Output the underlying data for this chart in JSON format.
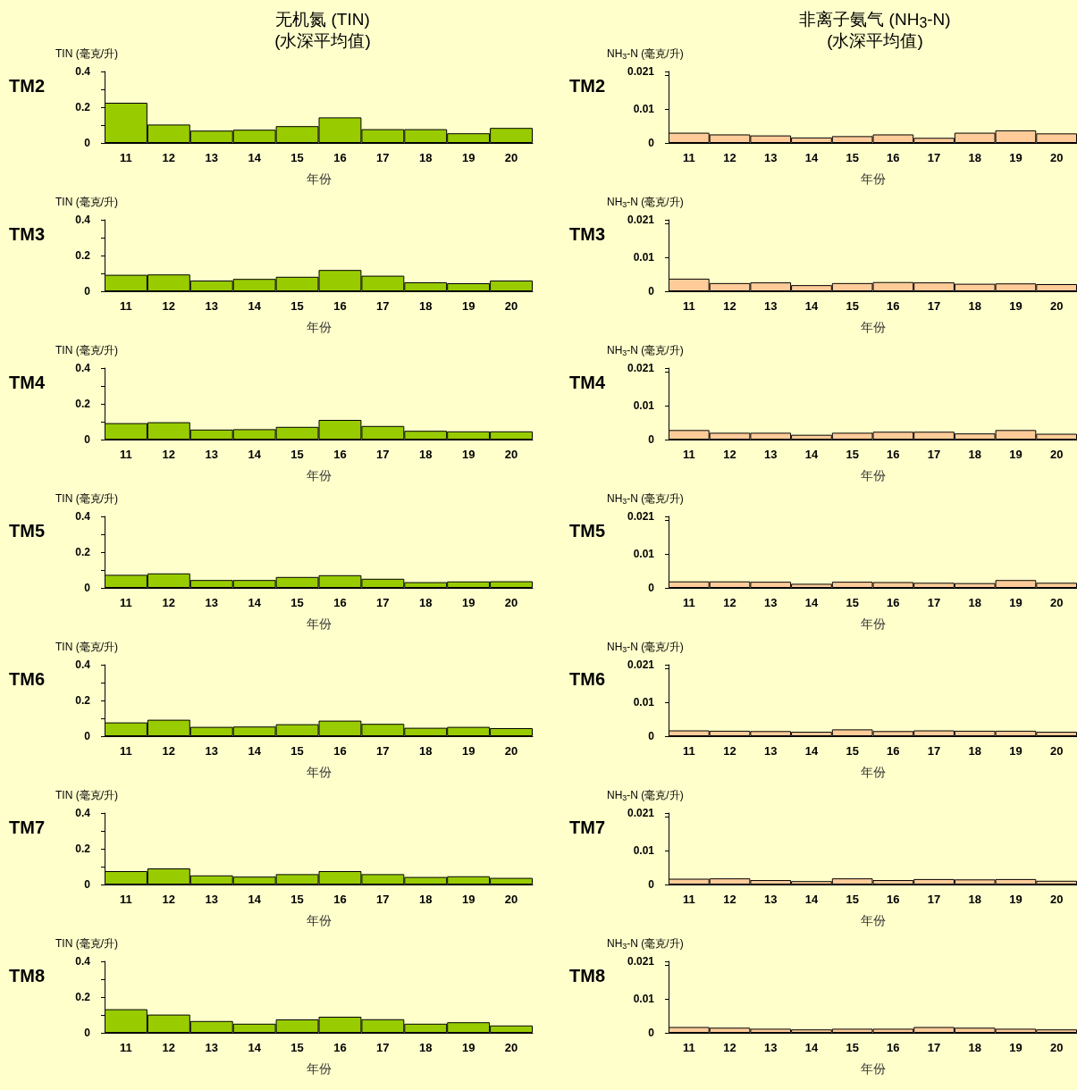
{
  "chart_data": [
    {
      "type": "bar",
      "title": "无机氮 (TIN)\n(水深平均值)",
      "annotations": [
        "TM2"
      ],
      "ylabel": "TIN (毫克/升)",
      "xlabel": "年份",
      "categories": [
        "11",
        "12",
        "13",
        "14",
        "15",
        "16",
        "17",
        "18",
        "19",
        "20"
      ],
      "color": "#99cc00",
      "ylim": [
        0,
        0.4
      ],
      "yticks": [
        0,
        {
          "value": 0.1,
          "label": null
        },
        0.2,
        {
          "value": 0.3,
          "label": null
        },
        0.4
      ],
      "values": [
        0.225,
        0.103,
        0.069,
        0.074,
        0.094,
        0.143,
        0.077,
        0.077,
        0.054,
        0.084
      ]
    },
    {
      "type": "bar",
      "title": "非离子氨气 (NH$_{3}$-N)\n(水深平均值)",
      "annotations": [
        "TM2"
      ],
      "ylabel": "NH$_{3}$-N (毫克/升)",
      "xlabel": "年份",
      "categories": [
        "11",
        "12",
        "13",
        "14",
        "15",
        "16",
        "17",
        "18",
        "19",
        "20"
      ],
      "color": "#ffcc99",
      "ylim": [
        0,
        0.021
      ],
      "yticks": [
        0,
        0.01,
        {
          "value": 0.02,
          "label": null
        },
        0.021
      ],
      "values": [
        0.003,
        0.0025,
        0.0022,
        0.0016,
        0.002,
        0.0025,
        0.0015,
        0.003,
        0.0037,
        0.0028
      ]
    },
    {
      "type": "bar",
      "annotations": [
        "TM3"
      ],
      "ylabel": "TIN (毫克/升)",
      "xlabel": "年份",
      "categories": [
        "11",
        "12",
        "13",
        "14",
        "15",
        "16",
        "17",
        "18",
        "19",
        "20"
      ],
      "color": "#99cc00",
      "ylim": [
        0,
        0.4
      ],
      "yticks": [
        0,
        {
          "value": 0.1,
          "label": null
        },
        0.2,
        {
          "value": 0.3,
          "label": null
        },
        0.4
      ],
      "values": [
        0.092,
        0.094,
        0.06,
        0.069,
        0.081,
        0.119,
        0.087,
        0.05,
        0.045,
        0.06
      ]
    },
    {
      "type": "bar",
      "annotations": [
        "TM3"
      ],
      "ylabel": "NH$_{3}$-N (毫克/升)",
      "xlabel": "年份",
      "categories": [
        "11",
        "12",
        "13",
        "14",
        "15",
        "16",
        "17",
        "18",
        "19",
        "20"
      ],
      "color": "#ffcc99",
      "ylim": [
        0,
        0.021
      ],
      "yticks": [
        0,
        0.01,
        {
          "value": 0.02,
          "label": null
        },
        0.021
      ],
      "values": [
        0.0037,
        0.0024,
        0.0026,
        0.0018,
        0.0024,
        0.0027,
        0.0026,
        0.0022,
        0.0023,
        0.0021
      ]
    },
    {
      "type": "bar",
      "annotations": [
        "TM4"
      ],
      "ylabel": "TIN (毫克/升)",
      "xlabel": "年份",
      "categories": [
        "11",
        "12",
        "13",
        "14",
        "15",
        "16",
        "17",
        "18",
        "19",
        "20"
      ],
      "color": "#99cc00",
      "ylim": [
        0,
        0.4
      ],
      "yticks": [
        0,
        {
          "value": 0.1,
          "label": null
        },
        0.2,
        {
          "value": 0.3,
          "label": null
        },
        0.4
      ],
      "values": [
        0.092,
        0.097,
        0.056,
        0.058,
        0.071,
        0.11,
        0.076,
        0.049,
        0.046,
        0.046
      ]
    },
    {
      "type": "bar",
      "annotations": [
        "TM4"
      ],
      "ylabel": "NH$_{3}$-N (毫克/升)",
      "xlabel": "年份",
      "categories": [
        "11",
        "12",
        "13",
        "14",
        "15",
        "16",
        "17",
        "18",
        "19",
        "20"
      ],
      "color": "#ffcc99",
      "ylim": [
        0,
        0.021
      ],
      "yticks": [
        0,
        0.01,
        {
          "value": 0.02,
          "label": null
        },
        0.021
      ],
      "values": [
        0.0028,
        0.002,
        0.002,
        0.0014,
        0.002,
        0.0023,
        0.0023,
        0.0018,
        0.0028,
        0.0017
      ]
    },
    {
      "type": "bar",
      "annotations": [
        "TM5"
      ],
      "ylabel": "TIN (毫克/升)",
      "xlabel": "年份",
      "categories": [
        "11",
        "12",
        "13",
        "14",
        "15",
        "16",
        "17",
        "18",
        "19",
        "20"
      ],
      "color": "#99cc00",
      "ylim": [
        0,
        0.4
      ],
      "yticks": [
        0,
        {
          "value": 0.1,
          "label": null
        },
        0.2,
        {
          "value": 0.3,
          "label": null
        },
        0.4
      ],
      "values": [
        0.073,
        0.081,
        0.044,
        0.044,
        0.061,
        0.071,
        0.051,
        0.032,
        0.036,
        0.037
      ]
    },
    {
      "type": "bar",
      "annotations": [
        "TM5"
      ],
      "ylabel": "NH$_{3}$-N (毫克/升)",
      "xlabel": "年份",
      "categories": [
        "11",
        "12",
        "13",
        "14",
        "15",
        "16",
        "17",
        "18",
        "19",
        "20"
      ],
      "color": "#ffcc99",
      "ylim": [
        0,
        0.021
      ],
      "yticks": [
        0,
        0.01,
        {
          "value": 0.02,
          "label": null
        },
        0.021
      ],
      "values": [
        0.0019,
        0.0019,
        0.0018,
        0.0012,
        0.0018,
        0.0017,
        0.0015,
        0.0014,
        0.0023,
        0.0015
      ]
    },
    {
      "type": "bar",
      "annotations": [
        "TM6"
      ],
      "ylabel": "TIN (毫克/升)",
      "xlabel": "年份",
      "categories": [
        "11",
        "12",
        "13",
        "14",
        "15",
        "16",
        "17",
        "18",
        "19",
        "20"
      ],
      "color": "#99cc00",
      "ylim": [
        0,
        0.4
      ],
      "yticks": [
        0,
        {
          "value": 0.1,
          "label": null
        },
        0.2,
        {
          "value": 0.3,
          "label": null
        },
        0.4
      ],
      "values": [
        0.077,
        0.092,
        0.052,
        0.054,
        0.067,
        0.087,
        0.069,
        0.047,
        0.052,
        0.045
      ]
    },
    {
      "type": "bar",
      "annotations": [
        "TM6"
      ],
      "ylabel": "NH$_{3}$-N (毫克/升)",
      "xlabel": "年份",
      "categories": [
        "11",
        "12",
        "13",
        "14",
        "15",
        "16",
        "17",
        "18",
        "19",
        "20"
      ],
      "color": "#ffcc99",
      "ylim": [
        0,
        0.021
      ],
      "yticks": [
        0,
        0.01,
        {
          "value": 0.02,
          "label": null
        },
        0.021
      ],
      "values": [
        0.0017,
        0.0016,
        0.0015,
        0.0013,
        0.002,
        0.0015,
        0.0017,
        0.0016,
        0.0016,
        0.0013
      ]
    },
    {
      "type": "bar",
      "annotations": [
        "TM7"
      ],
      "ylabel": "TIN (毫克/升)",
      "xlabel": "年份",
      "categories": [
        "11",
        "12",
        "13",
        "14",
        "15",
        "16",
        "17",
        "18",
        "19",
        "20"
      ],
      "color": "#99cc00",
      "ylim": [
        0,
        0.4
      ],
      "yticks": [
        0,
        {
          "value": 0.1,
          "label": null
        },
        0.2,
        {
          "value": 0.3,
          "label": null
        },
        0.4
      ],
      "values": [
        0.075,
        0.09,
        0.051,
        0.044,
        0.058,
        0.075,
        0.058,
        0.042,
        0.046,
        0.037
      ]
    },
    {
      "type": "bar",
      "annotations": [
        "TM7"
      ],
      "ylabel": "NH$_{3}$-N (毫克/升)",
      "xlabel": "年份",
      "categories": [
        "11",
        "12",
        "13",
        "14",
        "15",
        "16",
        "17",
        "18",
        "19",
        "20"
      ],
      "color": "#ffcc99",
      "ylim": [
        0,
        0.021
      ],
      "yticks": [
        0,
        0.01,
        {
          "value": 0.02,
          "label": null
        },
        0.021
      ],
      "values": [
        0.0017,
        0.0018,
        0.0013,
        0.001,
        0.0018,
        0.0013,
        0.0016,
        0.0015,
        0.0016,
        0.0011
      ]
    },
    {
      "type": "bar",
      "annotations": [
        "TM8"
      ],
      "ylabel": "TIN (毫克/升)",
      "xlabel": "年份",
      "categories": [
        "11",
        "12",
        "13",
        "14",
        "15",
        "16",
        "17",
        "18",
        "19",
        "20"
      ],
      "color": "#99cc00",
      "ylim": [
        0,
        0.4
      ],
      "yticks": [
        0,
        {
          "value": 0.1,
          "label": null
        },
        0.2,
        {
          "value": 0.3,
          "label": null
        },
        0.4
      ],
      "values": [
        0.132,
        0.102,
        0.066,
        0.051,
        0.075,
        0.09,
        0.076,
        0.051,
        0.059,
        0.041
      ]
    },
    {
      "type": "bar",
      "annotations": [
        "TM8"
      ],
      "ylabel": "NH$_{3}$-N (毫克/升)",
      "xlabel": "年份",
      "categories": [
        "11",
        "12",
        "13",
        "14",
        "15",
        "16",
        "17",
        "18",
        "19",
        "20"
      ],
      "color": "#ffcc99",
      "ylim": [
        0,
        0.021
      ],
      "yticks": [
        0,
        0.01,
        {
          "value": 0.02,
          "label": null
        },
        0.021
      ],
      "values": [
        0.0017,
        0.0015,
        0.0012,
        0.001,
        0.0012,
        0.0012,
        0.0017,
        0.0015,
        0.0012,
        0.001
      ]
    }
  ]
}
